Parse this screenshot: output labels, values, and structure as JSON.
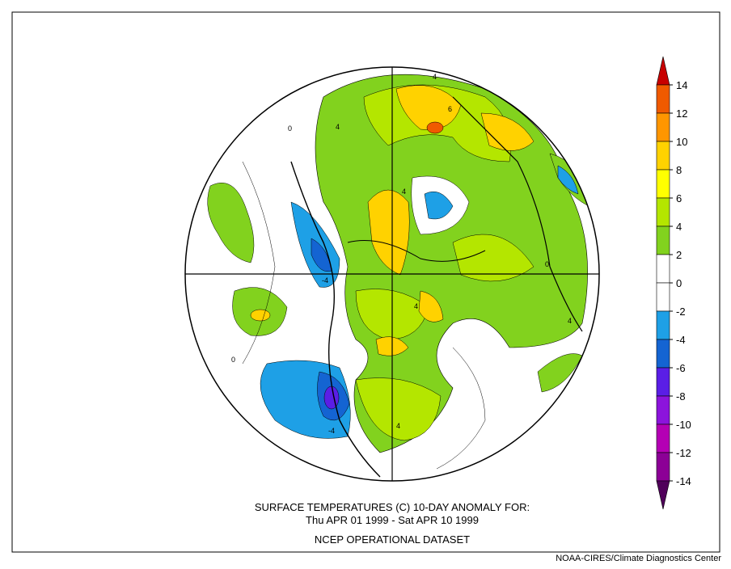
{
  "map": {
    "title_lines": [
      "SURFACE TEMPERATURES (C)   10-DAY ANOMALY FOR:",
      "Thu APR 01 1999 - Sat APR 10 1999",
      "NCEP OPERATIONAL DATASET"
    ],
    "credit": "NOAA-CIRES/Climate Diagnostics Center",
    "contour_labels": [
      4,
      4,
      4,
      4,
      4,
      -4,
      -4,
      0,
      0,
      0,
      6,
      4
    ],
    "colorbar": {
      "levels": [
        14,
        12,
        10,
        8,
        6,
        4,
        2,
        0,
        -2,
        -4,
        -6,
        -8,
        -10,
        -12,
        -14
      ],
      "colors": [
        "#c80000",
        "#f05a00",
        "#ff9600",
        "#ffd200",
        "#ffff00",
        "#b4e600",
        "#82d21e",
        "#ffffff",
        "#ffffff",
        "#1ea0e6",
        "#1464d2",
        "#5a1ee6",
        "#8c14dc",
        "#b400b4",
        "#8c0096",
        "#50005a"
      ]
    }
  }
}
